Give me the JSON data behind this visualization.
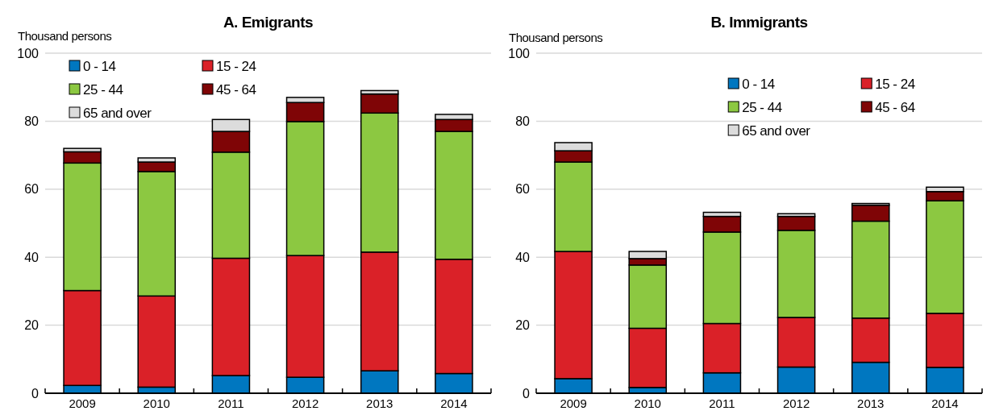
{
  "chart_data": [
    {
      "type": "bar",
      "title": "A. Emigrants",
      "ylabel": "Thousand persons",
      "stacked": true,
      "categories": [
        "2009",
        "2010",
        "2011",
        "2012",
        "2013",
        "2014"
      ],
      "ylim": [
        0,
        100
      ],
      "yticks": [
        0,
        20,
        40,
        60,
        80,
        100
      ],
      "grid": "y",
      "legend": "top left",
      "series": [
        {
          "name": "0 - 14",
          "color": "#0077c0",
          "values": [
            2.3,
            1.8,
            5.2,
            4.7,
            6.6,
            5.8
          ]
        },
        {
          "name": "15 - 24",
          "color": "#da2128",
          "values": [
            27.9,
            26.8,
            34.5,
            35.8,
            34.9,
            33.6
          ]
        },
        {
          "name": "25 - 44",
          "color": "#8cc841",
          "values": [
            37.5,
            36.6,
            31.2,
            39.4,
            40.9,
            37.6
          ]
        },
        {
          "name": "45 - 64",
          "color": "#7f0506",
          "values": [
            3.3,
            2.8,
            6.1,
            5.6,
            5.6,
            3.5
          ]
        },
        {
          "name": "65 and over",
          "color": "#dcdcdc",
          "values": [
            1.0,
            1.2,
            3.5,
            1.5,
            1.0,
            1.5
          ]
        }
      ]
    },
    {
      "type": "bar",
      "title": "B. Immigrants",
      "ylabel": "Thousand persons",
      "stacked": true,
      "categories": [
        "2009",
        "2010",
        "2011",
        "2012",
        "2013",
        "2014"
      ],
      "ylim": [
        0,
        100
      ],
      "yticks": [
        0,
        20,
        40,
        60,
        80,
        100
      ],
      "grid": "y",
      "legend": "top",
      "series": [
        {
          "name": "0 - 14",
          "color": "#0077c0",
          "values": [
            4.3,
            1.7,
            6.0,
            7.7,
            9.1,
            7.6
          ]
        },
        {
          "name": "15 - 24",
          "color": "#da2128",
          "values": [
            37.4,
            17.4,
            14.5,
            14.6,
            13.0,
            15.9
          ]
        },
        {
          "name": "25 - 44",
          "color": "#8cc841",
          "values": [
            26.3,
            18.6,
            26.9,
            25.6,
            28.5,
            33.1
          ]
        },
        {
          "name": "45 - 64",
          "color": "#7f0506",
          "values": [
            3.3,
            1.9,
            4.6,
            4.1,
            4.7,
            2.7
          ]
        },
        {
          "name": "65 and over",
          "color": "#dcdcdc",
          "values": [
            2.4,
            2.1,
            1.2,
            0.8,
            0.5,
            1.3
          ]
        }
      ]
    }
  ]
}
